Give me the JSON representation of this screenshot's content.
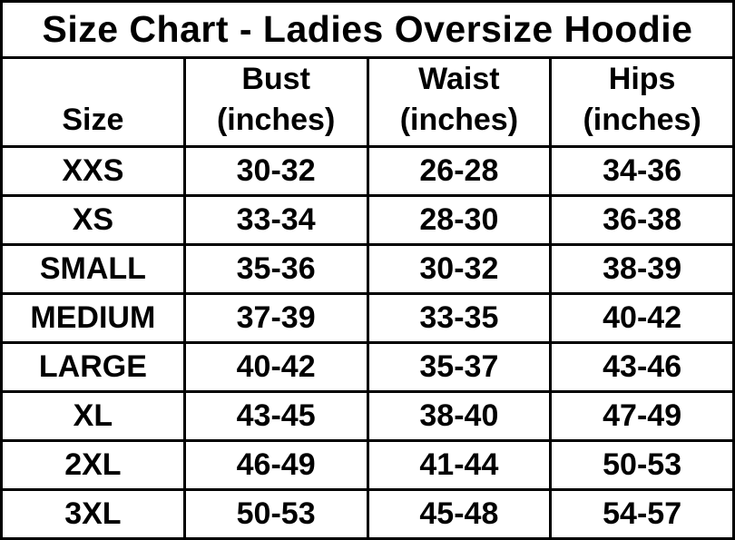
{
  "colors": {
    "border": "#000000",
    "text": "#000000",
    "background": "#ffffff"
  },
  "header": [
    {
      "label": "Size",
      "unit": ""
    },
    {
      "label": "Bust",
      "unit": "(inches)"
    },
    {
      "label": "Waist",
      "unit": "(inches)"
    },
    {
      "label": "Hips",
      "unit": "(inches)"
    }
  ],
  "chart_data": {
    "type": "table",
    "title": "Size Chart - Ladies Oversize Hoodie",
    "columns": [
      "Size",
      "Bust (inches)",
      "Waist (inches)",
      "Hips (inches)"
    ],
    "rows": [
      [
        "XXS",
        "30-32",
        "26-28",
        "34-36"
      ],
      [
        "XS",
        "33-34",
        "28-30",
        "36-38"
      ],
      [
        "SMALL",
        "35-36",
        "30-32",
        "38-39"
      ],
      [
        "MEDIUM",
        "37-39",
        "33-35",
        "40-42"
      ],
      [
        "LARGE",
        "40-42",
        "35-37",
        "43-46"
      ],
      [
        "XL",
        "43-45",
        "38-40",
        "47-49"
      ],
      [
        "2XL",
        "46-49",
        "41-44",
        "50-53"
      ],
      [
        "3XL",
        "50-53",
        "45-48",
        "54-57"
      ]
    ]
  }
}
